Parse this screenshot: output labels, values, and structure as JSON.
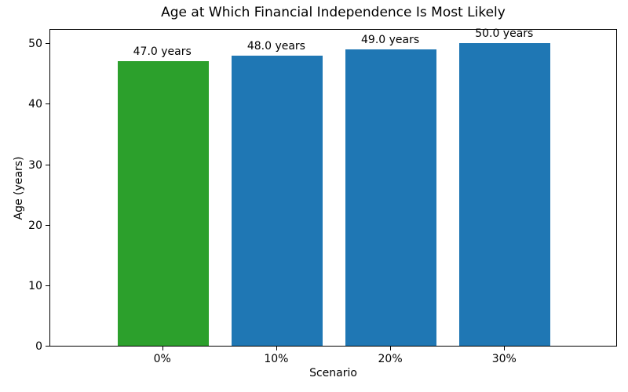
{
  "chart_data": {
    "type": "bar",
    "title": "Age at Which Financial Independence Is Most Likely",
    "xlabel": "Scenario",
    "ylabel": "Age (years)",
    "categories": [
      "0%",
      "10%",
      "20%",
      "30%"
    ],
    "values": [
      47.0,
      48.0,
      49.0,
      50.0
    ],
    "bar_labels": [
      "47.0 years",
      "48.0 years",
      "49.0 years",
      "50.0 years"
    ],
    "bar_colors": [
      "#2ca02c",
      "#1f77b4",
      "#1f77b4",
      "#1f77b4"
    ],
    "ylim": [
      0,
      52.5
    ],
    "yticks": [
      0,
      10,
      20,
      30,
      40,
      50
    ],
    "grid": false,
    "legend_position": "none",
    "highlighted_category": "0%"
  }
}
